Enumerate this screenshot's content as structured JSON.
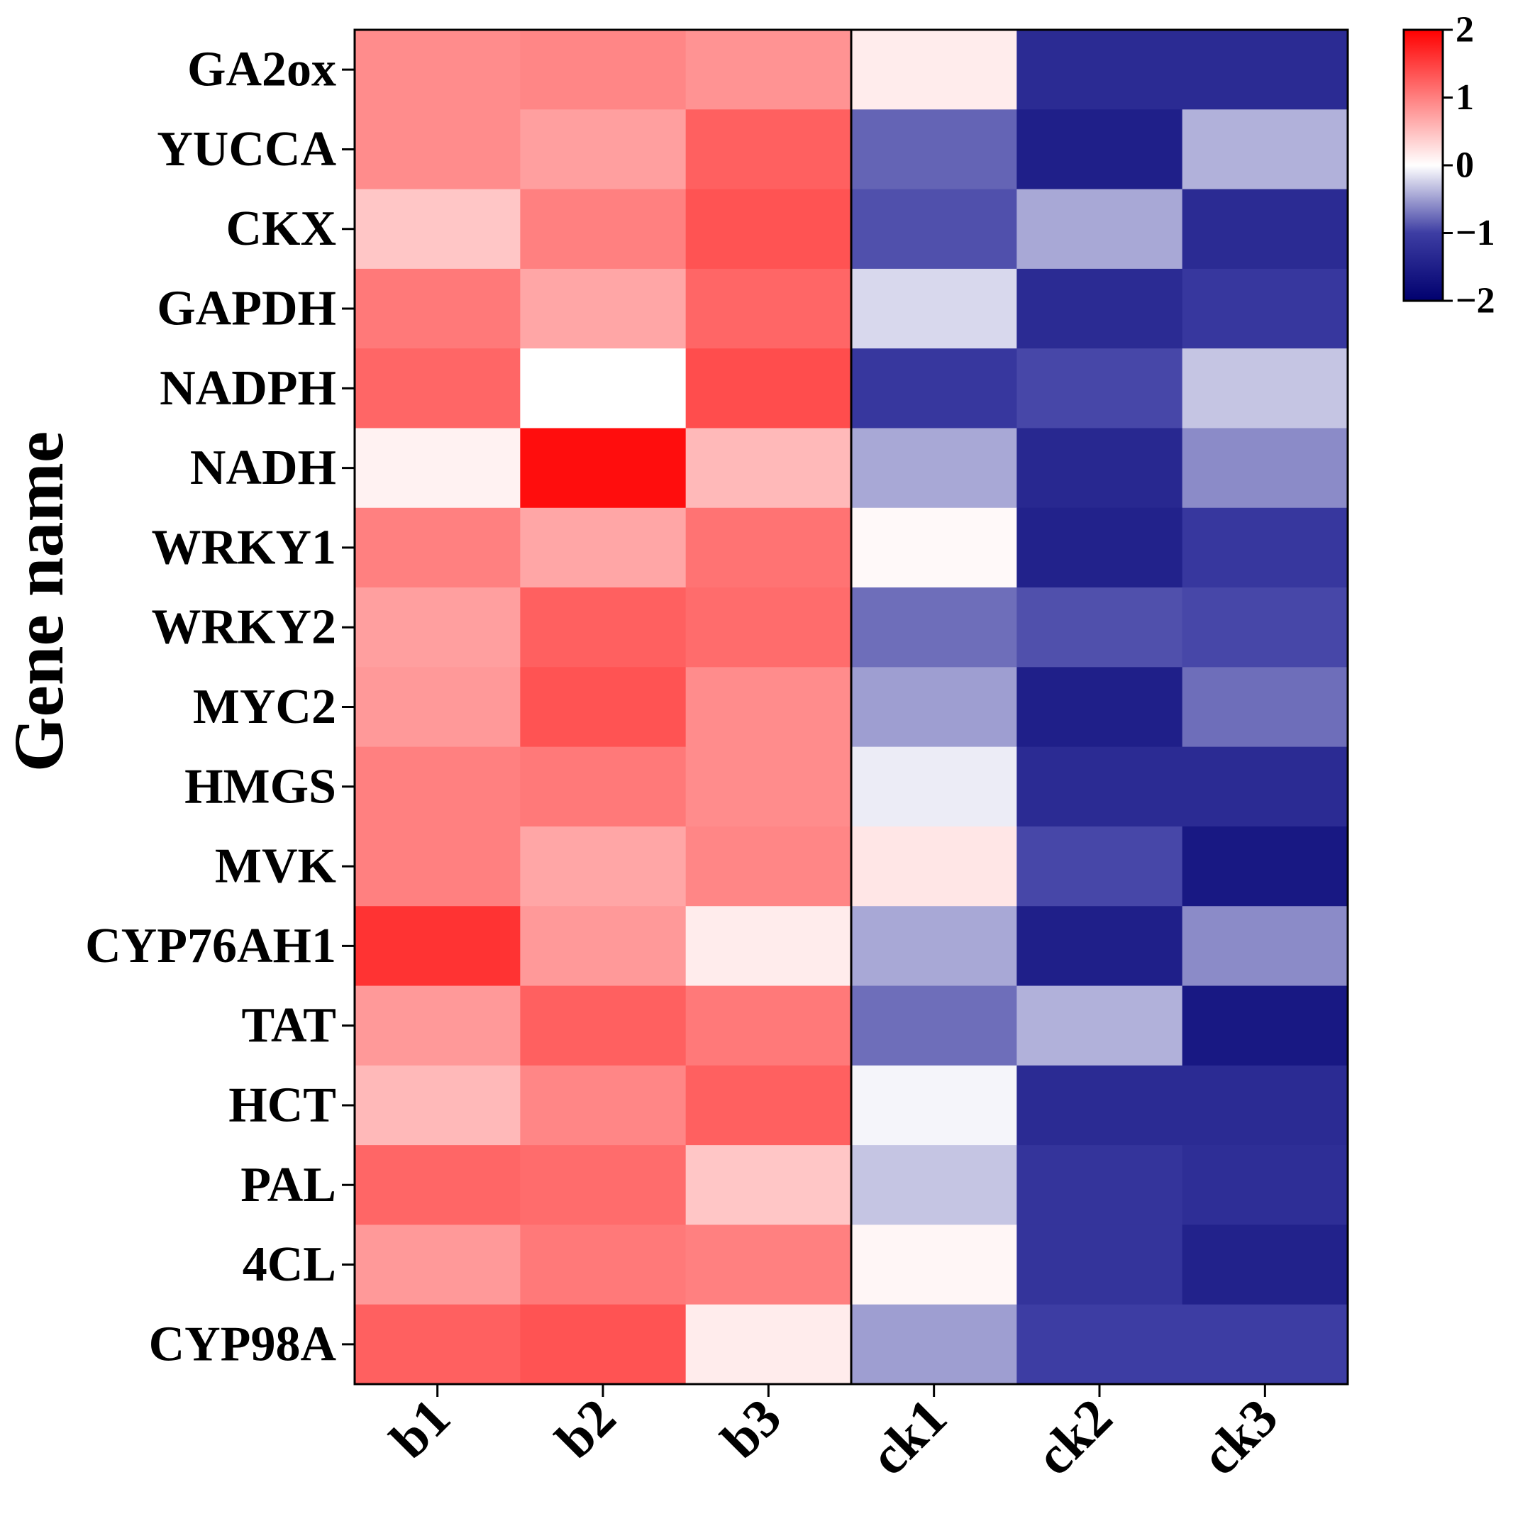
{
  "chart_data": {
    "type": "heatmap",
    "ylabel": "Gene name",
    "columns": [
      "b1",
      "b2",
      "b3",
      "ck1",
      "ck2",
      "ck3"
    ],
    "rows": [
      "GA2ox",
      "YUCCA",
      "CKX",
      "GAPDH",
      "NADPH",
      "NADH",
      "WRKY1",
      "WRKY2",
      "MYC2",
      "HMGS",
      "MVK",
      "CYP76AH1",
      "TAT",
      "HCT",
      "PAL",
      "4CL",
      "CYP98A"
    ],
    "values": [
      [
        0.9,
        0.95,
        0.85,
        0.15,
        -1.3,
        -1.3
      ],
      [
        0.9,
        0.75,
        1.25,
        -0.8,
        -1.5,
        -0.4
      ],
      [
        0.45,
        1.0,
        1.35,
        -0.9,
        -0.45,
        -1.3
      ],
      [
        1.05,
        0.7,
        1.2,
        -0.2,
        -1.3,
        -1.1
      ],
      [
        1.2,
        0.0,
        1.4,
        -1.1,
        -0.95,
        -0.3
      ],
      [
        0.1,
        1.9,
        0.55,
        -0.45,
        -1.35,
        -0.6
      ],
      [
        1.0,
        0.7,
        1.1,
        0.05,
        -1.45,
        -1.1
      ],
      [
        0.75,
        1.25,
        1.15,
        -0.75,
        -0.9,
        -0.95
      ],
      [
        0.8,
        1.35,
        0.9,
        -0.5,
        -1.5,
        -0.75
      ],
      [
        1.0,
        1.05,
        0.9,
        -0.1,
        -1.3,
        -1.3
      ],
      [
        1.0,
        0.7,
        0.95,
        0.2,
        -0.95,
        -1.6
      ],
      [
        1.6,
        0.8,
        0.15,
        -0.45,
        -1.5,
        -0.6
      ],
      [
        0.8,
        1.25,
        1.05,
        -0.75,
        -0.4,
        -1.6
      ],
      [
        0.55,
        0.95,
        1.25,
        -0.05,
        -1.3,
        -1.3
      ],
      [
        1.2,
        1.15,
        0.45,
        -0.3,
        -1.15,
        -1.25
      ],
      [
        0.8,
        1.05,
        1.0,
        0.07,
        -1.15,
        -1.45
      ],
      [
        1.25,
        1.35,
        0.15,
        -0.5,
        -1.0,
        -1.0
      ]
    ],
    "zlim": [
      -2,
      2
    ],
    "colorbar": {
      "ticks": [
        2,
        1,
        0,
        -1,
        -2
      ],
      "tick_labels": [
        "2",
        "1",
        "0",
        "−1",
        "−2"
      ],
      "colors": {
        "min": "#00006e",
        "low": "#3d3da3",
        "mid": "#ffffff",
        "high": "#ff0000"
      },
      "placement": "top-right"
    },
    "separator_after_column": "b3"
  }
}
